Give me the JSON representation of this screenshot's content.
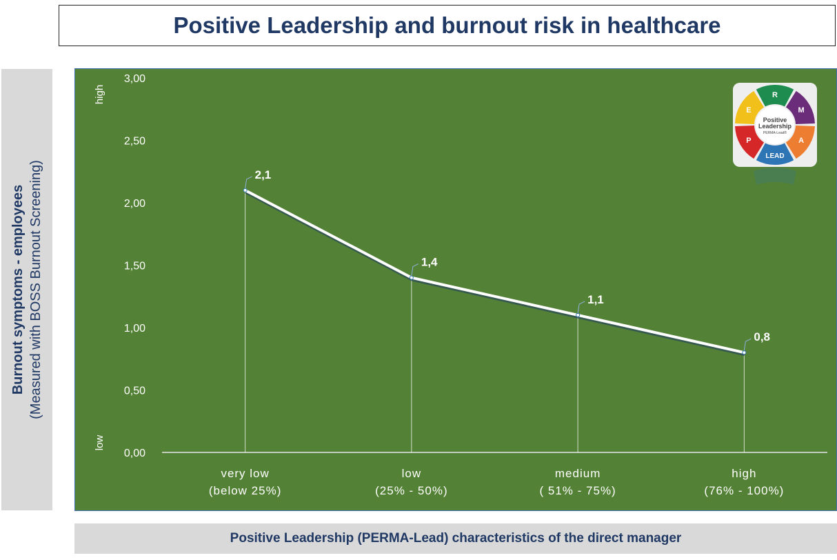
{
  "chart_data": {
    "type": "line",
    "title": "Positive Leadership and burnout risk in healthcare",
    "ylabel_line1": "Burnout symptoms - employees",
    "ylabel_line2": "(Measured with BOSS Burnout Screening)",
    "xlabel": "Positive Leadership (PERMA-Lead) characteristics of the direct manager",
    "categories": [
      [
        "very low",
        "(below 25%)"
      ],
      [
        "low",
        "(25% - 50%)"
      ],
      [
        "medium",
        "( 51% - 75%)"
      ],
      [
        "high",
        "(76% - 100%)"
      ]
    ],
    "values": [
      2.1,
      1.4,
      1.1,
      0.8
    ],
    "data_labels": [
      "2,1",
      "1,4",
      "1,1",
      "0,8"
    ],
    "ylim": [
      0,
      3
    ],
    "yticks": [
      0,
      0.5,
      1,
      1.5,
      2,
      2.5,
      3
    ],
    "ytick_labels": [
      "0,00",
      "0,50",
      "1,00",
      "1,50",
      "2,00",
      "2,50",
      "3,00"
    ],
    "y_annot_high": "high",
    "y_annot_low": "low",
    "grid": false,
    "drop_lines": true,
    "colors": {
      "background": "#538135",
      "line": "#ffffff",
      "text": "#ffffff",
      "title": "#1f3864"
    }
  },
  "logo": {
    "center_line1": "Positive",
    "center_line2": "Leadership",
    "center_line3": "PERMA-Lead®",
    "segments": [
      {
        "letter": "R",
        "color": "#1e8c4e"
      },
      {
        "letter": "M",
        "color": "#6b2d7a"
      },
      {
        "letter": "A",
        "color": "#ed7d31"
      },
      {
        "letter": "LEAD",
        "color": "#2e75b6"
      },
      {
        "letter": "P",
        "color": "#d62728"
      },
      {
        "letter": "E",
        "color": "#f2c01a"
      }
    ]
  }
}
